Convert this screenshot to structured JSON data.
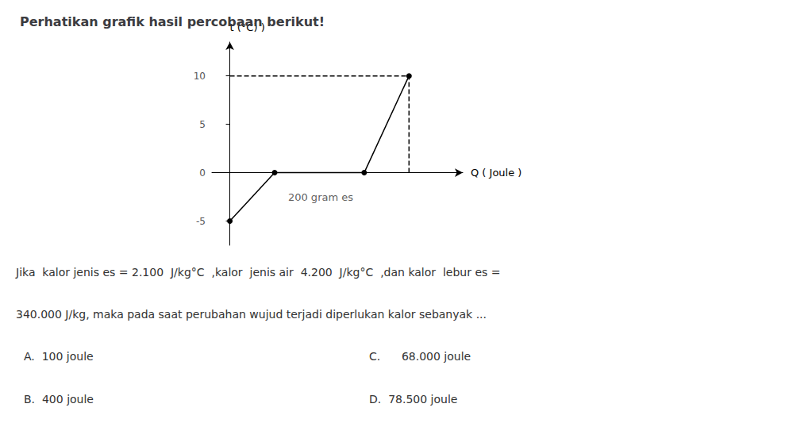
{
  "chart_data": {
    "type": "line",
    "title": "Perhatikan grafik hasil percobaan berikut!",
    "xlabel": "Q ( Joule )",
    "ylabel": "t (°C) )",
    "xlim": [
      -0.4,
      5.2
    ],
    "ylim": [
      -7.5,
      13.5
    ],
    "yticks": [
      -5,
      0,
      5,
      10
    ],
    "tick_labels": "y",
    "grid": false,
    "series": [
      {
        "x": [
          0,
          1,
          3,
          4
        ],
        "values": [
          -5,
          0,
          0,
          10
        ],
        "color": "#000000",
        "marker": "circle",
        "line_style": "solid"
      },
      {
        "x": [
          4,
          4
        ],
        "values": [
          0,
          10
        ],
        "color": "#000000",
        "line_style": "dashed"
      },
      {
        "x": [
          0,
          4
        ],
        "values": [
          10,
          10
        ],
        "color": "#000000",
        "line_style": "dashed"
      }
    ],
    "annotations": [
      {
        "text": "200 gram es",
        "x": 1.3,
        "y": -2.5
      }
    ],
    "question": [
      "Jika  kalor jenis es = 2.100  J/kg°C  ,kalor  jenis air  4.200  J/kg°C  ,dan kalor  lebur es =",
      "340.000 J/kg, maka pada saat perubahan wujud terjadi diperlukan kalor sebanyak ..."
    ],
    "answers": [
      "A.  100 joule",
      "B.  400 joule",
      "C.      68.000 joule",
      "D.  78.500 joule"
    ]
  }
}
